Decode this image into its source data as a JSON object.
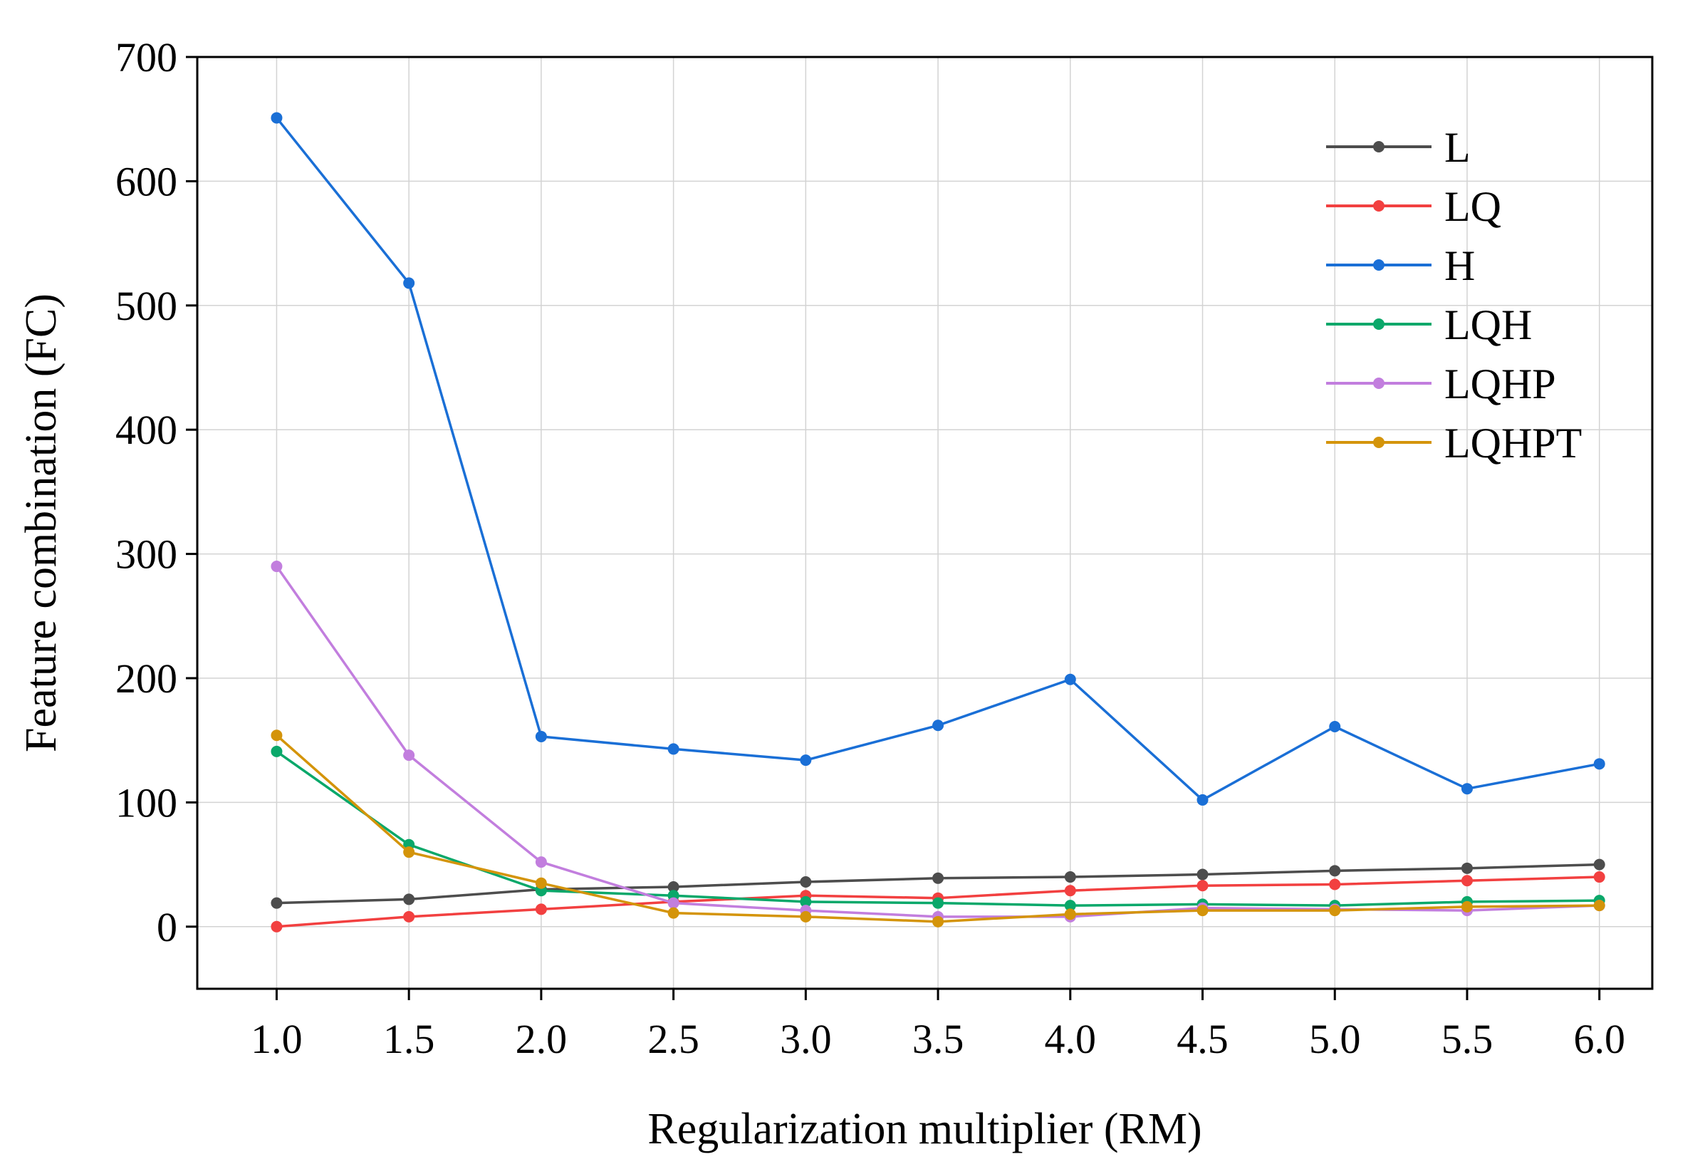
{
  "chart_data": {
    "type": "line",
    "title": "",
    "xlabel": "Regularization multiplier (RM)",
    "ylabel": "Feature combination (FC)",
    "x": [
      1.0,
      1.5,
      2.0,
      2.5,
      3.0,
      3.5,
      4.0,
      4.5,
      5.0,
      5.5,
      6.0
    ],
    "x_tick_labels": [
      "1.0",
      "1.5",
      "2.0",
      "2.5",
      "3.0",
      "3.5",
      "4.0",
      "4.5",
      "5.0",
      "5.5",
      "6.0"
    ],
    "y_ticks": [
      0,
      100,
      200,
      300,
      400,
      500,
      600,
      700
    ],
    "y_tick_labels": [
      "0",
      "100",
      "200",
      "300",
      "400",
      "500",
      "600",
      "700"
    ],
    "xlim": [
      0.7,
      6.2
    ],
    "ylim": [
      -50,
      700
    ],
    "grid": true,
    "legend_position": "top-right",
    "series": [
      {
        "name": "L",
        "color": "#4d4d4d",
        "values": [
          19,
          22,
          30,
          32,
          36,
          39,
          40,
          42,
          45,
          47,
          50
        ]
      },
      {
        "name": "LQ",
        "color": "#f24040",
        "values": [
          0,
          8,
          14,
          20,
          25,
          23,
          29,
          33,
          34,
          37,
          40
        ]
      },
      {
        "name": "H",
        "color": "#1a6fd6",
        "values": [
          651,
          518,
          153,
          143,
          134,
          162,
          199,
          102,
          161,
          111,
          131
        ]
      },
      {
        "name": "LQH",
        "color": "#0aa86a",
        "values": [
          141,
          66,
          29,
          25,
          20,
          19,
          17,
          18,
          17,
          20,
          21
        ]
      },
      {
        "name": "LQHP",
        "color": "#c27ede",
        "values": [
          290,
          138,
          52,
          19,
          13,
          8,
          8,
          15,
          14,
          13,
          17
        ]
      },
      {
        "name": "LQHPT",
        "color": "#d4940a",
        "values": [
          154,
          60,
          35,
          11,
          8,
          4,
          10,
          13,
          13,
          16,
          17
        ]
      }
    ]
  }
}
